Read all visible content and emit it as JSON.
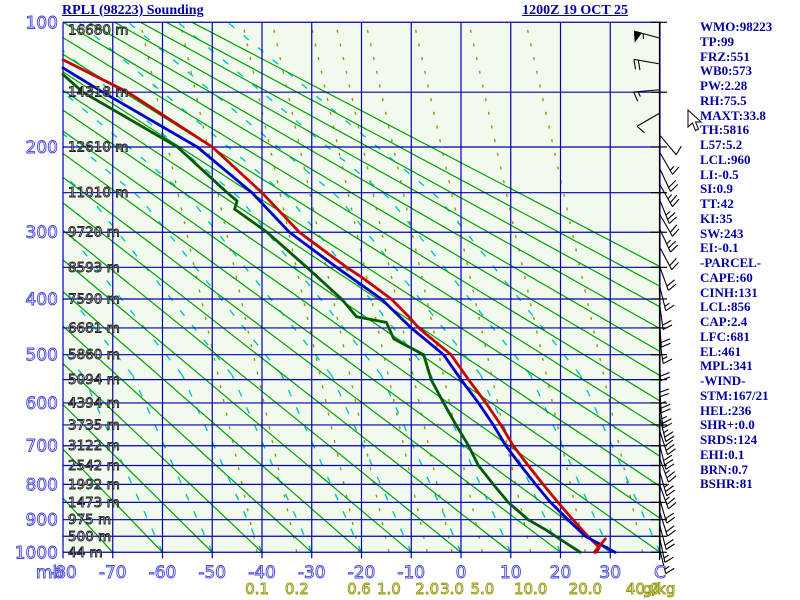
{
  "header": {
    "title": "RPLI (98223) Sounding",
    "datetime": "1200Z 19 OCT 25"
  },
  "stats_panel": {
    "lines": [
      "WMO:98223",
      "TP:99",
      "FRZ:551",
      "WB0:573",
      "PW:2.28",
      "RH:75.5",
      "MAXT:33.8",
      "TH:5816",
      "L57:5.2",
      "LCL:960",
      "LI:-0.5",
      "SI:0.9",
      "TT:42",
      "KI:35",
      "SW:243",
      "EI:-0.1",
      "-PARCEL-",
      "CAPE:60",
      "CINH:131",
      "LCL:856",
      "CAP:2.4",
      "LFC:681",
      "EL:461",
      "MPL:341",
      "-WIND-",
      "STM:167/21",
      "HEL:236",
      "SHR+:0.0",
      "SRDS:124",
      "EHI:0.1",
      "BRN:0.7",
      "BSHR:81"
    ]
  },
  "chart_data": {
    "type": "line",
    "subtype": "stuve-sounding",
    "title": "RPLI (98223) Sounding",
    "grid": true,
    "pressure_axis": {
      "unit": "mb",
      "range": [
        100,
        1000
      ],
      "major_ticks": [
        100,
        200,
        300,
        400,
        500,
        600,
        700,
        800,
        900,
        1000
      ],
      "all_levels": [
        100,
        150,
        200,
        250,
        300,
        350,
        400,
        450,
        500,
        550,
        600,
        650,
        700,
        750,
        800,
        850,
        900,
        950,
        1000
      ]
    },
    "temperature_axis": {
      "unit": "C",
      "range": [
        -80,
        40
      ],
      "ticks": [
        -80,
        -70,
        -60,
        -50,
        -40,
        -30,
        -20,
        -10,
        0,
        10,
        20,
        30
      ]
    },
    "height_labels": {
      "unit": "m",
      "values_by_level": [
        16680,
        14318,
        12610,
        11010,
        9720,
        8593,
        7590,
        6681,
        5860,
        5094,
        4394,
        3735,
        3122,
        2542,
        1992,
        1473,
        975,
        500,
        44
      ]
    },
    "mixing_ratio": {
      "unit": "g/kg",
      "values": [
        0.1,
        0.2,
        0.6,
        1.0,
        2.0,
        3.0,
        5.0,
        10.0,
        20.0,
        40.0
      ],
      "t_at_1000mb": [
        -41,
        -33,
        -20.5,
        -14.5,
        -6.8,
        -1.8,
        4.3,
        14,
        25,
        36.5
      ]
    },
    "dry_adiabats_theta_c": [
      -80,
      -70,
      -60,
      -50,
      -40,
      -30,
      -20,
      -10,
      0,
      10,
      20,
      30,
      40,
      50,
      60,
      70,
      80,
      90,
      100,
      110,
      120,
      130,
      140,
      150
    ],
    "moist_adiabats_tw_c": [
      -60,
      -50,
      -40,
      -30,
      -20,
      -10,
      0,
      10,
      20,
      30,
      40
    ],
    "series": [
      {
        "name": "temperature",
        "color": "#c80000",
        "points": [
          [
            125,
            -80
          ],
          [
            150,
            -67
          ],
          [
            200,
            -50
          ],
          [
            250,
            -40
          ],
          [
            300,
            -32.5
          ],
          [
            350,
            -23
          ],
          [
            365,
            -20
          ],
          [
            400,
            -14
          ],
          [
            430,
            -10.5
          ],
          [
            450,
            -8.5
          ],
          [
            500,
            -2
          ],
          [
            550,
            1.5
          ],
          [
            600,
            5
          ],
          [
            650,
            8
          ],
          [
            700,
            10.5
          ],
          [
            750,
            13.5
          ],
          [
            800,
            16.5
          ],
          [
            850,
            19.5
          ],
          [
            900,
            22.5
          ],
          [
            950,
            25.5
          ],
          [
            985,
            27.8
          ],
          [
            1000,
            27.2
          ]
        ]
      },
      {
        "name": "wet-bulb",
        "color": "#0000cd",
        "points": [
          [
            131,
            -80
          ],
          [
            150,
            -72
          ],
          [
            200,
            -53
          ],
          [
            250,
            -42
          ],
          [
            300,
            -34.5
          ],
          [
            350,
            -25
          ],
          [
            400,
            -16
          ],
          [
            450,
            -10
          ],
          [
            500,
            -3.5
          ],
          [
            550,
            0
          ],
          [
            600,
            3.5
          ],
          [
            650,
            6.5
          ],
          [
            700,
            9
          ],
          [
            750,
            12
          ],
          [
            800,
            15
          ],
          [
            850,
            18
          ],
          [
            900,
            21.5
          ],
          [
            950,
            25
          ],
          [
            1000,
            31
          ]
        ]
      },
      {
        "name": "dewpoint",
        "color": "#005a00",
        "points": [
          [
            136,
            -80
          ],
          [
            150,
            -76
          ],
          [
            200,
            -57
          ],
          [
            250,
            -47
          ],
          [
            260,
            -45
          ],
          [
            270,
            -45.5
          ],
          [
            300,
            -39
          ],
          [
            350,
            -31
          ],
          [
            400,
            -24
          ],
          [
            430,
            -21
          ],
          [
            440,
            -15
          ],
          [
            470,
            -13.5
          ],
          [
            500,
            -7.5
          ],
          [
            550,
            -6
          ],
          [
            600,
            -3.5
          ],
          [
            650,
            -1
          ],
          [
            700,
            1.5
          ],
          [
            750,
            3.5
          ],
          [
            800,
            6.5
          ],
          [
            850,
            9.5
          ],
          [
            900,
            13.5
          ],
          [
            930,
            17
          ],
          [
            960,
            20
          ],
          [
            1000,
            24
          ]
        ]
      },
      {
        "name": "parcel-stub",
        "color": "#c80000",
        "points": [
          [
            958,
            29
          ],
          [
            1000,
            26.8
          ]
        ]
      }
    ],
    "wind_barbs": [
      {
        "p": 110,
        "dir": 285,
        "spd": 55
      },
      {
        "p": 128,
        "dir": 280,
        "spd": 20
      },
      {
        "p": 148,
        "dir": 265,
        "spd": 15
      },
      {
        "p": 168,
        "dir": 240,
        "spd": 10
      },
      {
        "p": 188,
        "dir": 140,
        "spd": 10
      },
      {
        "p": 205,
        "dir": 150,
        "spd": 15
      },
      {
        "p": 222,
        "dir": 155,
        "spd": 20
      },
      {
        "p": 240,
        "dir": 150,
        "spd": 25
      },
      {
        "p": 258,
        "dir": 158,
        "spd": 25
      },
      {
        "p": 276,
        "dir": 150,
        "spd": 20
      },
      {
        "p": 295,
        "dir": 155,
        "spd": 25
      },
      {
        "p": 320,
        "dir": 152,
        "spd": 20
      },
      {
        "p": 348,
        "dir": 160,
        "spd": 20
      },
      {
        "p": 378,
        "dir": 166,
        "spd": 15
      },
      {
        "p": 408,
        "dir": 172,
        "spd": 20
      },
      {
        "p": 438,
        "dir": 176,
        "spd": 20
      },
      {
        "p": 468,
        "dir": 172,
        "spd": 15
      },
      {
        "p": 500,
        "dir": 178,
        "spd": 20
      },
      {
        "p": 532,
        "dir": 180,
        "spd": 20
      },
      {
        "p": 565,
        "dir": 176,
        "spd": 25
      },
      {
        "p": 598,
        "dir": 172,
        "spd": 25
      },
      {
        "p": 630,
        "dir": 166,
        "spd": 25
      },
      {
        "p": 662,
        "dir": 162,
        "spd": 30
      },
      {
        "p": 696,
        "dir": 166,
        "spd": 30
      },
      {
        "p": 730,
        "dir": 160,
        "spd": 25
      },
      {
        "p": 764,
        "dir": 164,
        "spd": 25
      },
      {
        "p": 800,
        "dir": 160,
        "spd": 25
      },
      {
        "p": 838,
        "dir": 164,
        "spd": 20
      },
      {
        "p": 876,
        "dir": 162,
        "spd": 20
      },
      {
        "p": 914,
        "dir": 165,
        "spd": 20
      },
      {
        "p": 952,
        "dir": 168,
        "spd": 15
      },
      {
        "p": 988,
        "dir": 166,
        "spd": 15
      }
    ]
  },
  "colors": {
    "grid_blue": "#0000b4",
    "axis_label_blue": "#4343dc",
    "dry_adiabat_green": "#00a000",
    "moist_adiabat_cyan": "#00c3c3",
    "mixing_ratio_olive": "#96960a",
    "height_label_black": "#222222",
    "panel_navy": "#0000a0",
    "plot_background": "#f2faee",
    "barb_black": "#000000",
    "temperature_red": "#c80000",
    "wetbulb_blue": "#0000cd",
    "dewpoint_green": "#005a00"
  }
}
